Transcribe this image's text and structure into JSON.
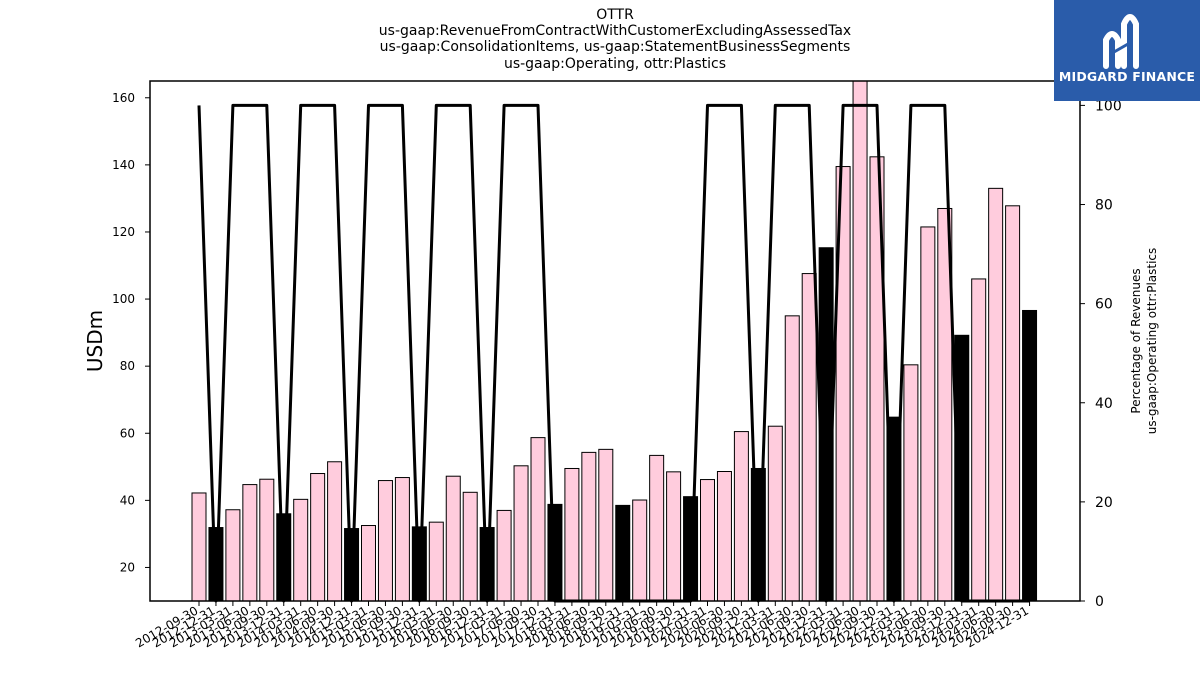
{
  "chart_data": {
    "type": "bar",
    "title_lines": [
      "OTTR",
      "us-gaap:RevenueFromContractWithCustomerExcludingAssessedTax",
      "us-gaap:ConsolidationItems, us-gaap:StatementBusinessSegments",
      "us-gaap:Operating, ottr:Plastics"
    ],
    "ylabel": "USDm",
    "y2label_lines": [
      "Percentage of Revenues",
      "us-gaap:Operating ottr:Plastics"
    ],
    "ylim": [
      10,
      165
    ],
    "y2lim": [
      0,
      100
    ],
    "yticks": [
      20,
      40,
      60,
      80,
      100,
      120,
      140,
      160
    ],
    "y2ticks": [
      0,
      20,
      40,
      60,
      80,
      100
    ],
    "categories": [
      "2012-09-30",
      "2012-12-31",
      "2013-03-31",
      "2013-06-30",
      "2013-09-30",
      "2013-12-31",
      "2014-03-31",
      "2014-06-30",
      "2014-09-30",
      "2014-12-31",
      "2015-03-31",
      "2015-06-30",
      "2015-09-30",
      "2015-12-31",
      "2016-03-31",
      "2016-06-30",
      "2016-09-30",
      "2016-12-31",
      "2017-03-31",
      "2017-06-30",
      "2017-09-30",
      "2017-12-31",
      "2018-03-31",
      "2018-06-30",
      "2018-09-30",
      "2018-12-31",
      "2019-03-31",
      "2019-06-30",
      "2019-09-30",
      "2019-12-31",
      "2020-03-31",
      "2020-06-30",
      "2020-09-30",
      "2020-12-31",
      "2021-03-31",
      "2021-06-30",
      "2021-09-30",
      "2021-12-31",
      "2022-03-31",
      "2022-06-30",
      "2022-09-30",
      "2022-12-31",
      "2023-03-31",
      "2023-06-30",
      "2023-09-30",
      "2023-12-31",
      "2024-03-31",
      "2024-06-30",
      "2024-09-30",
      "2024-12-31"
    ],
    "series": [
      {
        "name": "Revenue",
        "values": [
          42.2,
          31.9,
          37.2,
          44.7,
          46.3,
          36.0,
          40.3,
          48.0,
          51.5,
          31.6,
          32.5,
          45.9,
          46.8,
          32.1,
          33.5,
          47.2,
          42.4,
          31.9,
          37.0,
          50.3,
          58.7,
          38.8,
          49.5,
          54.3,
          55.2,
          38.5,
          40.1,
          53.4,
          48.5,
          41.1,
          46.2,
          48.6,
          60.5,
          49.5,
          62.1,
          95.0,
          107.6,
          115.3,
          139.5,
          165.0,
          142.4,
          64.8,
          80.4,
          121.5,
          127.0,
          89.2,
          106.0,
          133.0,
          127.8,
          96.6
        ],
        "highlight": [
          false,
          true,
          false,
          false,
          false,
          true,
          false,
          false,
          false,
          true,
          false,
          false,
          false,
          true,
          false,
          false,
          false,
          true,
          false,
          false,
          false,
          true,
          false,
          false,
          false,
          true,
          false,
          false,
          false,
          true,
          false,
          false,
          false,
          true,
          false,
          false,
          false,
          true,
          false,
          false,
          false,
          true,
          false,
          false,
          false,
          true,
          false,
          false,
          false,
          true
        ],
        "colors": {
          "bar": "#ffccdd",
          "highlight": "#000000",
          "edge": "#000000"
        }
      },
      {
        "name": "Percentage of Revenues",
        "axis": "right",
        "values": [
          100,
          0,
          100,
          100,
          100,
          0,
          100,
          100,
          100,
          0,
          100,
          100,
          100,
          0,
          100,
          100,
          100,
          0,
          100,
          100,
          100,
          0,
          0,
          0,
          0,
          0,
          0,
          0,
          0,
          0,
          100,
          100,
          100,
          0,
          100,
          100,
          100,
          0,
          100,
          100,
          100,
          0,
          100,
          100,
          100,
          0,
          0,
          0,
          0,
          0
        ],
        "colors": {
          "line": "#000000"
        }
      }
    ],
    "grid": false,
    "legend": "none"
  },
  "logo": {
    "text": "MIDGARD FINANCE",
    "bg": "#2a5caa"
  }
}
